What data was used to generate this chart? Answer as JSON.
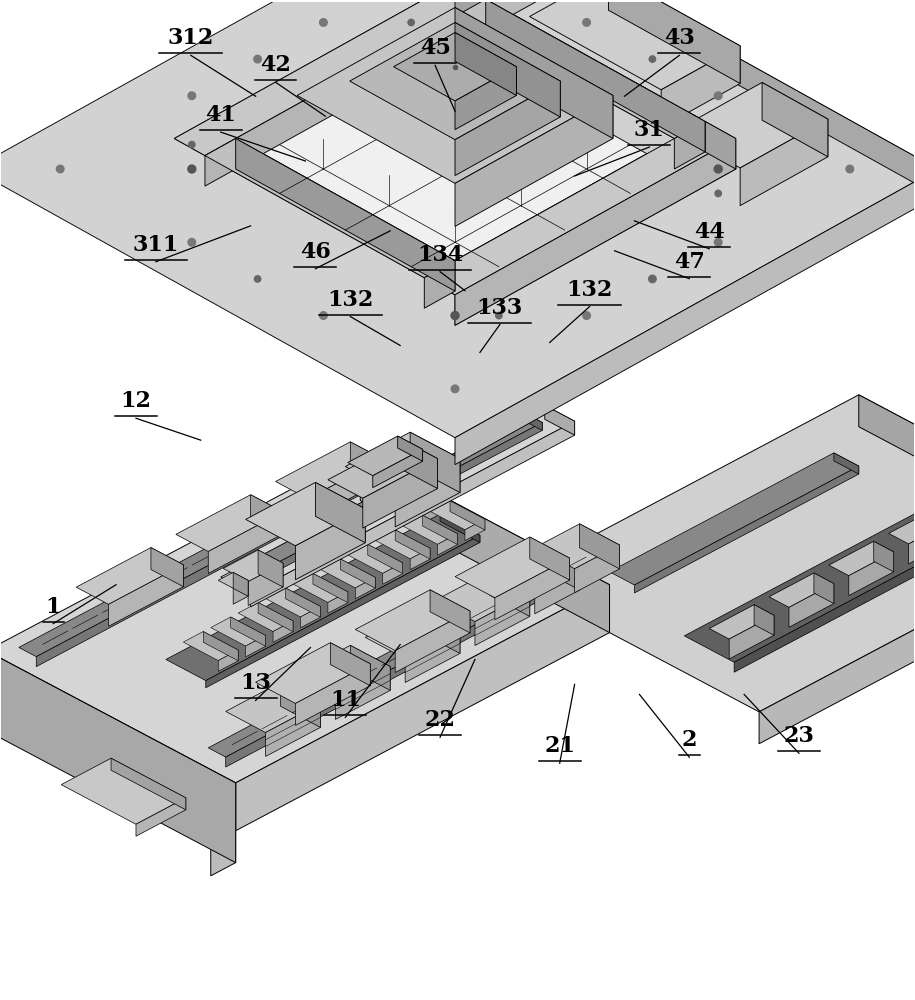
{
  "bg_color": "#ffffff",
  "lc": "#000000",
  "figsize": [
    9.15,
    10.0
  ],
  "dpi": 100,
  "label_fontsize": 16,
  "annotations": [
    [
      "312",
      1.9,
      9.52,
      2.55,
      9.05
    ],
    [
      "42",
      2.75,
      9.25,
      3.25,
      8.85
    ],
    [
      "45",
      4.35,
      9.42,
      4.55,
      8.9
    ],
    [
      "43",
      6.8,
      9.52,
      6.25,
      9.05
    ],
    [
      "41",
      2.2,
      8.75,
      3.05,
      8.4
    ],
    [
      "31",
      6.5,
      8.6,
      5.75,
      8.25
    ],
    [
      "311",
      1.55,
      7.45,
      2.5,
      7.75
    ],
    [
      "46",
      3.15,
      7.38,
      3.9,
      7.7
    ],
    [
      "134",
      4.4,
      7.35,
      4.65,
      7.1
    ],
    [
      "44",
      7.1,
      7.58,
      6.35,
      7.8
    ],
    [
      "47",
      6.9,
      7.28,
      6.15,
      7.5
    ],
    [
      "132",
      3.5,
      6.9,
      4.0,
      6.55
    ],
    [
      "133",
      5.0,
      6.82,
      4.8,
      6.48
    ],
    [
      "132",
      5.9,
      7.0,
      5.5,
      6.58
    ],
    [
      "12",
      1.35,
      5.88,
      2.0,
      5.6
    ],
    [
      "1",
      0.52,
      3.82,
      1.15,
      4.15
    ],
    [
      "13",
      2.55,
      3.05,
      3.1,
      3.52
    ],
    [
      "11",
      3.45,
      2.88,
      4.0,
      3.55
    ],
    [
      "22",
      4.4,
      2.68,
      4.75,
      3.4
    ],
    [
      "21",
      5.6,
      2.42,
      5.75,
      3.15
    ],
    [
      "2",
      6.9,
      2.48,
      6.4,
      3.05
    ],
    [
      "23",
      8.0,
      2.52,
      7.45,
      3.05
    ]
  ]
}
